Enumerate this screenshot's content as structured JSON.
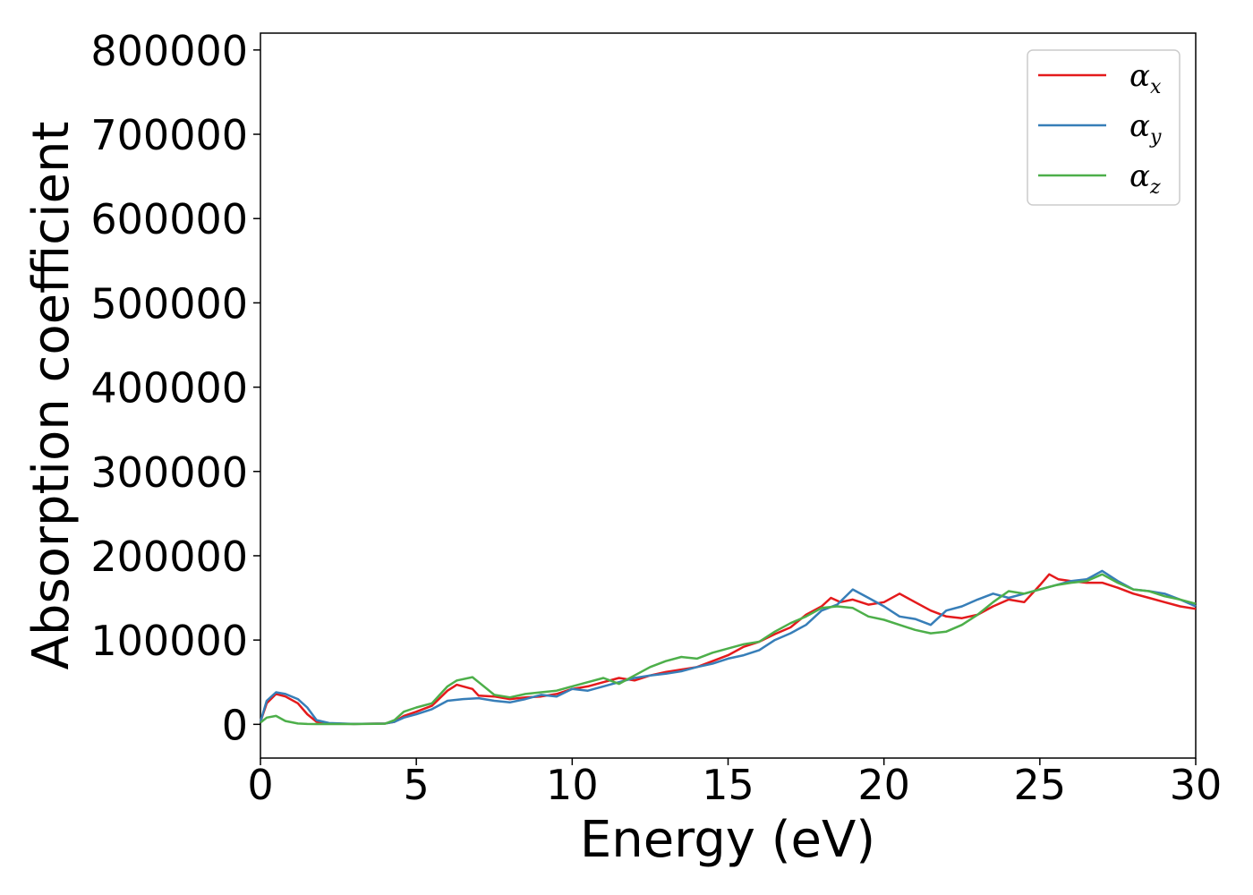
{
  "chart_data": {
    "type": "line",
    "title": "",
    "xlabel": "Energy (eV)",
    "ylabel": "Absorption coefficient",
    "xlim": [
      0,
      30
    ],
    "ylim": [
      -40000,
      820000
    ],
    "xticks": [
      0,
      5,
      10,
      15,
      20,
      25,
      30
    ],
    "yticks": [
      0,
      100000,
      200000,
      300000,
      400000,
      500000,
      600000,
      700000,
      800000
    ],
    "grid": false,
    "legend_position": "top-right",
    "series": [
      {
        "name": "α",
        "subscript": "x",
        "color": "#e41a1c",
        "x": [
          0,
          0.2,
          0.5,
          0.8,
          1.2,
          1.5,
          1.8,
          2.2,
          3,
          4,
          4.3,
          4.6,
          5,
          5.5,
          6,
          6.3,
          6.8,
          7,
          7.5,
          8,
          8.5,
          9,
          9.5,
          10,
          10.5,
          11,
          11.5,
          12,
          12.5,
          13,
          13.5,
          14,
          14.5,
          15,
          15.5,
          16,
          16.5,
          17,
          17.5,
          18,
          18.3,
          18.6,
          19,
          19.5,
          20,
          20.5,
          21,
          21.5,
          22,
          22.5,
          23,
          23.5,
          24,
          24.5,
          25,
          25.3,
          25.6,
          26,
          26.5,
          27,
          27.5,
          28,
          28.5,
          29,
          29.5,
          30
        ],
        "y": [
          3000,
          25000,
          36000,
          33000,
          25000,
          12000,
          3000,
          1000,
          500,
          1000,
          3000,
          10000,
          15000,
          22000,
          40000,
          47000,
          42000,
          34000,
          33000,
          30000,
          32000,
          33000,
          36000,
          42000,
          45000,
          50000,
          55000,
          52000,
          58000,
          62000,
          65000,
          68000,
          75000,
          82000,
          92000,
          98000,
          107000,
          115000,
          130000,
          140000,
          150000,
          145000,
          148000,
          142000,
          145000,
          155000,
          145000,
          135000,
          128000,
          126000,
          130000,
          140000,
          148000,
          145000,
          165000,
          178000,
          172000,
          170000,
          168000,
          168000,
          162000,
          155000,
          150000,
          145000,
          140000,
          137000
        ]
      },
      {
        "name": "α",
        "subscript": "y",
        "color": "#377eb8",
        "x": [
          0,
          0.2,
          0.5,
          0.8,
          1.2,
          1.5,
          1.8,
          2.2,
          3,
          4,
          4.3,
          4.6,
          5,
          5.5,
          6,
          6.5,
          7,
          7.5,
          8,
          8.5,
          9,
          9.5,
          10,
          10.5,
          11,
          11.5,
          12,
          12.5,
          13,
          13.5,
          14,
          14.5,
          15,
          15.5,
          16,
          16.5,
          17,
          17.5,
          18,
          18.5,
          19,
          19.5,
          20,
          20.5,
          21,
          21.5,
          22,
          22.5,
          23,
          23.5,
          24,
          24.5,
          25,
          25.5,
          26,
          26.5,
          27,
          27.5,
          28,
          28.5,
          29,
          29.5,
          30
        ],
        "y": [
          3000,
          28000,
          38000,
          36000,
          30000,
          20000,
          5000,
          1500,
          500,
          1000,
          3000,
          8000,
          12000,
          18000,
          28000,
          30000,
          31000,
          28000,
          26000,
          30000,
          35000,
          33000,
          42000,
          40000,
          45000,
          50000,
          55000,
          58000,
          60000,
          63000,
          68000,
          72000,
          78000,
          82000,
          88000,
          100000,
          108000,
          118000,
          135000,
          142000,
          160000,
          150000,
          140000,
          128000,
          125000,
          118000,
          135000,
          140000,
          148000,
          155000,
          150000,
          155000,
          160000,
          165000,
          170000,
          172000,
          182000,
          170000,
          160000,
          158000,
          155000,
          148000,
          140000
        ]
      },
      {
        "name": "α",
        "subscript": "z",
        "color": "#4daf4a",
        "x": [
          0,
          0.2,
          0.5,
          0.8,
          1.2,
          1.5,
          1.8,
          2.2,
          3,
          4,
          4.3,
          4.6,
          5,
          5.5,
          6,
          6.3,
          6.8,
          7,
          7.5,
          8,
          8.5,
          9,
          9.5,
          10,
          10.5,
          11,
          11.5,
          12,
          12.5,
          13,
          13.5,
          14,
          14.5,
          15,
          15.5,
          16,
          16.5,
          17,
          17.5,
          18,
          18.5,
          19,
          19.5,
          20,
          20.5,
          21,
          21.5,
          22,
          22.5,
          23,
          23.5,
          24,
          24.5,
          25,
          25.5,
          26,
          26.5,
          27,
          27.5,
          28,
          28.5,
          29,
          29.5,
          30
        ],
        "y": [
          2000,
          8000,
          10000,
          4000,
          1000,
          500,
          300,
          300,
          300,
          800,
          5000,
          15000,
          20000,
          25000,
          45000,
          52000,
          56000,
          50000,
          35000,
          32000,
          36000,
          38000,
          40000,
          45000,
          50000,
          55000,
          48000,
          58000,
          68000,
          75000,
          80000,
          78000,
          85000,
          90000,
          95000,
          98000,
          110000,
          120000,
          128000,
          138000,
          140000,
          138000,
          128000,
          124000,
          118000,
          112000,
          108000,
          110000,
          118000,
          130000,
          145000,
          158000,
          155000,
          160000,
          165000,
          168000,
          170000,
          178000,
          168000,
          160000,
          158000,
          152000,
          148000,
          143000
        ]
      }
    ]
  }
}
